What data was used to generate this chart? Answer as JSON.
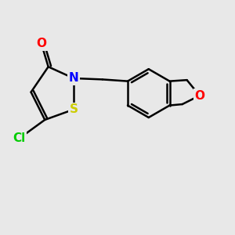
{
  "bg_color": "#e8e8e8",
  "bond_color": "#000000",
  "bond_width": 1.8,
  "atom_colors": {
    "O": "#ff0000",
    "N": "#0000ff",
    "S": "#cccc00",
    "Cl": "#00cc00",
    "C": "#000000"
  },
  "font_size": 11
}
